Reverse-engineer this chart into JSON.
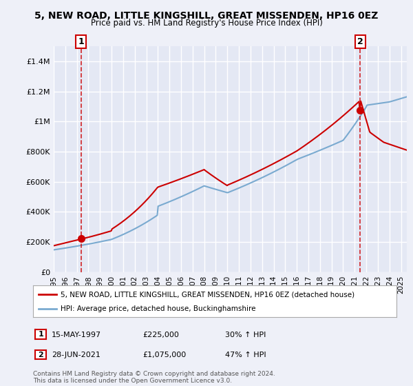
{
  "title_line1": "5, NEW ROAD, LITTLE KINGSHILL, GREAT MISSENDEN, HP16 0EZ",
  "title_line2": "Price paid vs. HM Land Registry's House Price Index (HPI)",
  "ylim": [
    0,
    1500000
  ],
  "yticks": [
    0,
    200000,
    400000,
    600000,
    800000,
    1000000,
    1200000,
    1400000
  ],
  "ytick_labels": [
    "£0",
    "£200K",
    "£400K",
    "£600K",
    "£800K",
    "£1M",
    "£1.2M",
    "£1.4M"
  ],
  "background_color": "#eef0f8",
  "plot_bg_color": "#e4e8f4",
  "grid_color": "#ffffff",
  "house_color": "#cc0000",
  "hpi_color": "#7aaad0",
  "legend_house": "5, NEW ROAD, LITTLE KINGSHILL, GREAT MISSENDEN, HP16 0EZ (detached house)",
  "legend_hpi": "HPI: Average price, detached house, Buckinghamshire",
  "m1_x": 1997.37,
  "m1_price": 225000,
  "m1_text": "15-MAY-1997",
  "m1_pricetxt": "£225,000",
  "m1_hpi": "30% ↑ HPI",
  "m2_x": 2021.48,
  "m2_price": 1075000,
  "m2_text": "28-JUN-2021",
  "m2_pricetxt": "£1,075,000",
  "m2_hpi": "47% ↑ HPI",
  "footer": "Contains HM Land Registry data © Crown copyright and database right 2024.\nThis data is licensed under the Open Government Licence v3.0.",
  "xmin": 1995,
  "xmax": 2025.5
}
